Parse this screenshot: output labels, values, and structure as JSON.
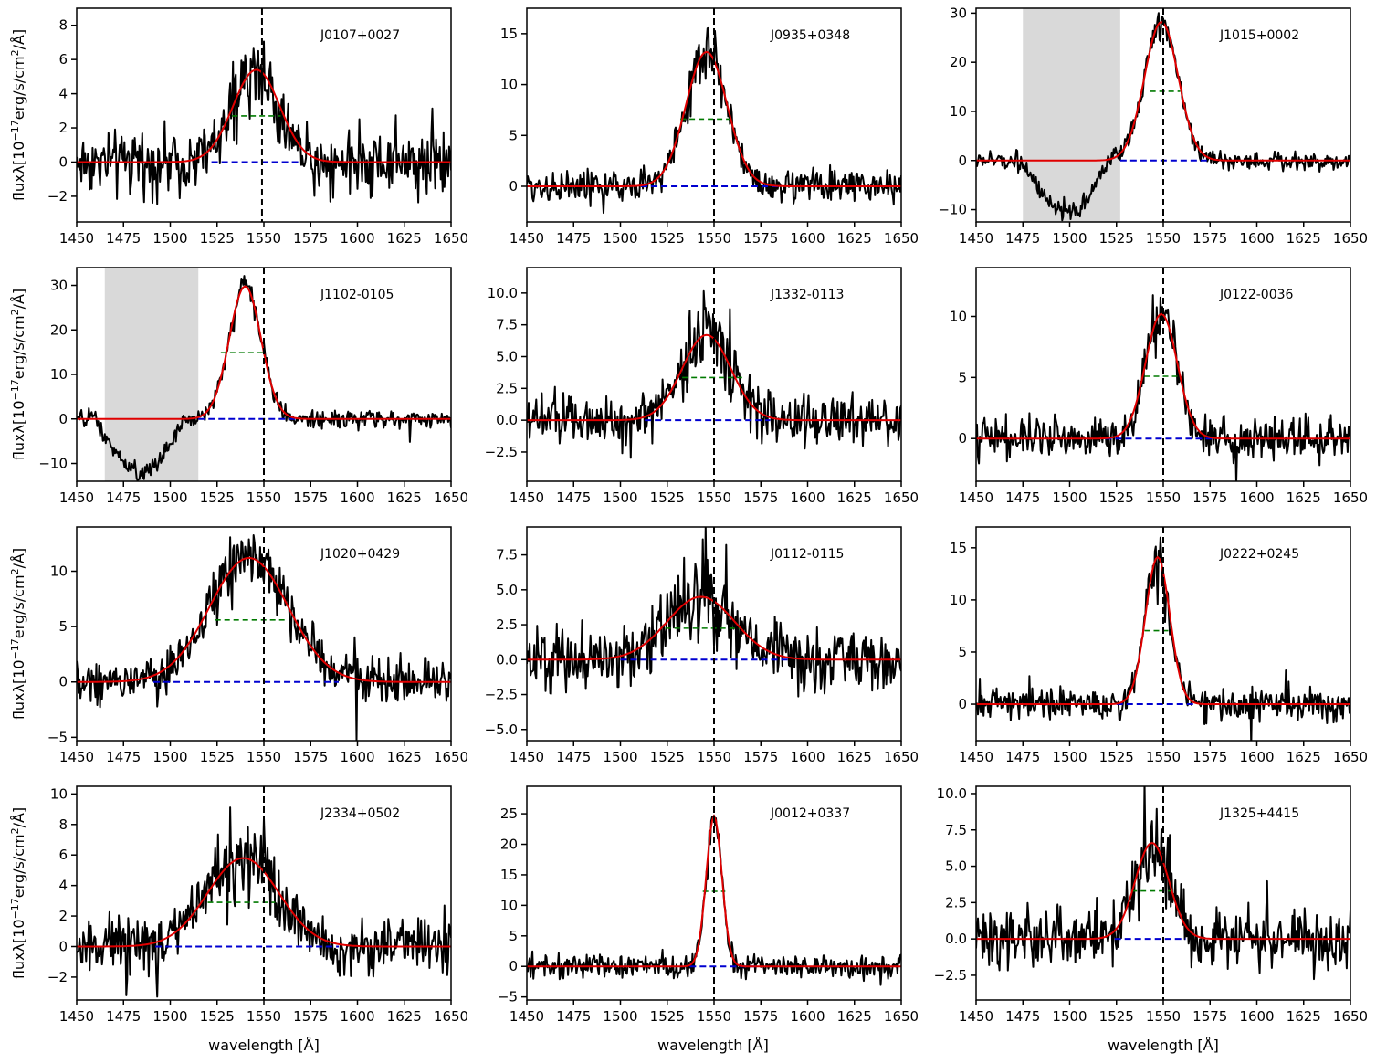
{
  "figure": {
    "xlabel": "wavelength [Å]",
    "ylabel": "fluxλ[10",
    "ylabel_exp": "−17",
    "ylabel_unit": "erg/s/cm",
    "ylabel_sq": "2",
    "ylabel_tail": "/Å]"
  },
  "colors": {
    "spectrum": "#000000",
    "fit": "#e00000",
    "half_max": "#007a00",
    "baseline": "#0000d0",
    "line_center": "#000000",
    "masked_region": "#d9d9d9"
  },
  "chart_data": [
    {
      "type": "line",
      "title": "J0107+0027",
      "xlim": [
        1450,
        1650
      ],
      "ylim": [
        -3.5,
        9
      ],
      "xticks": [
        1450,
        1475,
        1500,
        1525,
        1550,
        1575,
        1600,
        1625,
        1650
      ],
      "yticks": [
        -2,
        0,
        2,
        4,
        6,
        8
      ],
      "ytick_labels": [
        "−2",
        "0",
        "2",
        "4",
        "6",
        "8"
      ],
      "peak": 5.4,
      "center": 1546,
      "sigma": 12.5,
      "noise": 1.1,
      "spike": 3.0,
      "line_center": 1549,
      "baseline_range": [
        1522,
        1570
      ],
      "halfmax_range": [
        1533,
        1559
      ],
      "mask": null,
      "absorption": null
    },
    {
      "type": "line",
      "title": "J0935+0348",
      "xlim": [
        1450,
        1650
      ],
      "ylim": [
        -3.5,
        17.5
      ],
      "xticks": [
        1450,
        1475,
        1500,
        1525,
        1550,
        1575,
        1600,
        1625,
        1650
      ],
      "yticks": [
        0,
        5,
        10,
        15
      ],
      "ytick_labels": [
        "0",
        "5",
        "10",
        "15"
      ],
      "peak": 13.2,
      "center": 1546,
      "sigma": 11.0,
      "noise": 1.0,
      "spike": 3.0,
      "line_center": 1550,
      "baseline_range": [
        1511,
        1586
      ],
      "halfmax_range": [
        1532,
        1560
      ],
      "mask": null,
      "absorption": null
    },
    {
      "type": "line",
      "title": "J1015+0002",
      "xlim": [
        1450,
        1650
      ],
      "ylim": [
        -12.5,
        31
      ],
      "xticks": [
        1450,
        1475,
        1500,
        1525,
        1550,
        1575,
        1600,
        1625,
        1650
      ],
      "yticks": [
        -10,
        0,
        10,
        20,
        30
      ],
      "ytick_labels": [
        "−10",
        "0",
        "10",
        "20",
        "30"
      ],
      "peak": 28.2,
      "center": 1549,
      "sigma": 9.0,
      "noise": 1.2,
      "spike": 2.0,
      "line_center": 1550,
      "baseline_range": [
        1527,
        1574
      ],
      "halfmax_range": [
        1543,
        1559
      ],
      "mask": [
        1475,
        1527
      ],
      "absorption": {
        "from": 1475,
        "to": 1527,
        "depth": 11
      }
    },
    {
      "type": "line",
      "title": "J1102-0105",
      "xlim": [
        1450,
        1650
      ],
      "ylim": [
        -14,
        34
      ],
      "xticks": [
        1450,
        1475,
        1500,
        1525,
        1550,
        1575,
        1600,
        1625,
        1650
      ],
      "yticks": [
        -10,
        0,
        10,
        20,
        30
      ],
      "ytick_labels": [
        "−10",
        "0",
        "10",
        "20",
        "30"
      ],
      "peak": 29.8,
      "center": 1540,
      "sigma": 8.5,
      "noise": 1.2,
      "spike": 3.0,
      "line_center": 1550,
      "baseline_range": [
        1515,
        1568
      ],
      "halfmax_range": [
        1527,
        1550
      ],
      "mask": [
        1465,
        1515
      ],
      "absorption": {
        "from": 1460,
        "to": 1515,
        "depth": 12
      }
    },
    {
      "type": "line",
      "title": "J1332-0113",
      "xlim": [
        1450,
        1650
      ],
      "ylim": [
        -4.8,
        12
      ],
      "xticks": [
        1450,
        1475,
        1500,
        1525,
        1550,
        1575,
        1600,
        1625,
        1650
      ],
      "yticks": [
        -2.5,
        0,
        2.5,
        5,
        7.5,
        10
      ],
      "ytick_labels": [
        "−2.5",
        "0.0",
        "2.5",
        "5.0",
        "7.5",
        "10.0"
      ],
      "peak": 6.7,
      "center": 1546,
      "sigma": 13.0,
      "noise": 1.3,
      "spike": 4.0,
      "line_center": 1550,
      "baseline_range": [
        1513,
        1580
      ],
      "halfmax_range": [
        1533,
        1565
      ],
      "mask": null,
      "absorption": null
    },
    {
      "type": "line",
      "title": "J0122-0036",
      "xlim": [
        1450,
        1650
      ],
      "ylim": [
        -3.5,
        14
      ],
      "xticks": [
        1450,
        1475,
        1500,
        1525,
        1550,
        1575,
        1600,
        1625,
        1650
      ],
      "yticks": [
        0,
        5,
        10
      ],
      "ytick_labels": [
        "0",
        "5",
        "10"
      ],
      "peak": 10.2,
      "center": 1549,
      "sigma": 8.5,
      "noise": 1.0,
      "spike": 3.0,
      "line_center": 1550,
      "baseline_range": [
        1519,
        1578
      ],
      "halfmax_range": [
        1540,
        1558
      ],
      "mask": null,
      "absorption": null
    },
    {
      "type": "line",
      "title": "J1020+0429",
      "xlim": [
        1450,
        1650
      ],
      "ylim": [
        -5.3,
        14
      ],
      "xticks": [
        1450,
        1475,
        1500,
        1525,
        1550,
        1575,
        1600,
        1625,
        1650
      ],
      "yticks": [
        -5,
        0,
        5,
        10
      ],
      "ytick_labels": [
        "−5",
        "0",
        "5",
        "10"
      ],
      "peak": 11.2,
      "center": 1542,
      "sigma": 21.0,
      "noise": 1.3,
      "spike": 3.0,
      "line_center": 1550,
      "baseline_range": [
        1491,
        1590
      ],
      "halfmax_range": [
        1524,
        1562
      ],
      "mask": null,
      "absorption": null
    },
    {
      "type": "line",
      "title": "J0112-0115",
      "xlim": [
        1450,
        1650
      ],
      "ylim": [
        -5.8,
        9.5
      ],
      "xticks": [
        1450,
        1475,
        1500,
        1525,
        1550,
        1575,
        1600,
        1625,
        1650
      ],
      "yticks": [
        -5,
        -2.5,
        0,
        2.5,
        5,
        7.5
      ],
      "ytick_labels": [
        "−5.0",
        "−2.5",
        "0.0",
        "2.5",
        "5.0",
        "7.5"
      ],
      "peak": 4.5,
      "center": 1543,
      "sigma": 18.0,
      "noise": 1.4,
      "spike": 3.5,
      "line_center": 1550,
      "baseline_range": [
        1500,
        1590
      ],
      "halfmax_range": [
        1524,
        1564
      ],
      "mask": null,
      "absorption": null
    },
    {
      "type": "line",
      "title": "J0222+0245",
      "xlim": [
        1450,
        1650
      ],
      "ylim": [
        -3.5,
        17
      ],
      "xticks": [
        1450,
        1475,
        1500,
        1525,
        1550,
        1575,
        1600,
        1625,
        1650
      ],
      "yticks": [
        0,
        5,
        10,
        15
      ],
      "ytick_labels": [
        "0",
        "5",
        "10",
        "15"
      ],
      "peak": 14.1,
      "center": 1547,
      "sigma": 6.5,
      "noise": 1.0,
      "spike": 3.0,
      "line_center": 1550,
      "baseline_range": [
        1525,
        1567
      ],
      "halfmax_range": [
        1540,
        1555
      ],
      "mask": null,
      "absorption": null
    },
    {
      "type": "line",
      "title": "J2334+0502",
      "xlim": [
        1450,
        1650
      ],
      "ylim": [
        -3.5,
        10.5
      ],
      "xticks": [
        1450,
        1475,
        1500,
        1525,
        1550,
        1575,
        1600,
        1625,
        1650
      ],
      "yticks": [
        -2,
        0,
        2,
        4,
        6,
        8,
        10
      ],
      "ytick_labels": [
        "−2",
        "0",
        "2",
        "4",
        "6",
        "8",
        "10"
      ],
      "peak": 5.8,
      "center": 1539,
      "sigma": 19.0,
      "noise": 1.1,
      "spike": 3.0,
      "line_center": 1550,
      "baseline_range": [
        1492,
        1590
      ],
      "halfmax_range": [
        1520,
        1556
      ],
      "mask": null,
      "absorption": null
    },
    {
      "type": "line",
      "title": "J0012+0337",
      "xlim": [
        1450,
        1650
      ],
      "ylim": [
        -5.5,
        29.5
      ],
      "xticks": [
        1450,
        1475,
        1500,
        1525,
        1550,
        1575,
        1600,
        1625,
        1650
      ],
      "yticks": [
        -5,
        0,
        5,
        10,
        15,
        20,
        25
      ],
      "ytick_labels": [
        "−5",
        "0",
        "5",
        "10",
        "15",
        "20",
        "25"
      ],
      "peak": 24.6,
      "center": 1550,
      "sigma": 4.2,
      "noise": 1.2,
      "spike": 4.0,
      "line_center": 1550,
      "baseline_range": [
        1537,
        1573
      ],
      "halfmax_range": [
        1544,
        1556
      ],
      "mask": null,
      "absorption": null
    },
    {
      "type": "line",
      "title": "J1325+4415",
      "xlim": [
        1450,
        1650
      ],
      "ylim": [
        -4.2,
        10.5
      ],
      "xticks": [
        1450,
        1475,
        1500,
        1525,
        1550,
        1575,
        1600,
        1625,
        1650
      ],
      "yticks": [
        -2.5,
        0,
        2.5,
        5,
        7.5,
        10
      ],
      "ytick_labels": [
        "−2.5",
        "0.0",
        "2.5",
        "5.0",
        "7.5",
        "10.0"
      ],
      "peak": 6.6,
      "center": 1544,
      "sigma": 9.0,
      "noise": 1.3,
      "spike": 3.0,
      "line_center": 1550,
      "baseline_range": [
        1524,
        1562
      ],
      "halfmax_range": [
        1533,
        1555
      ],
      "mask": null,
      "absorption": null
    }
  ]
}
